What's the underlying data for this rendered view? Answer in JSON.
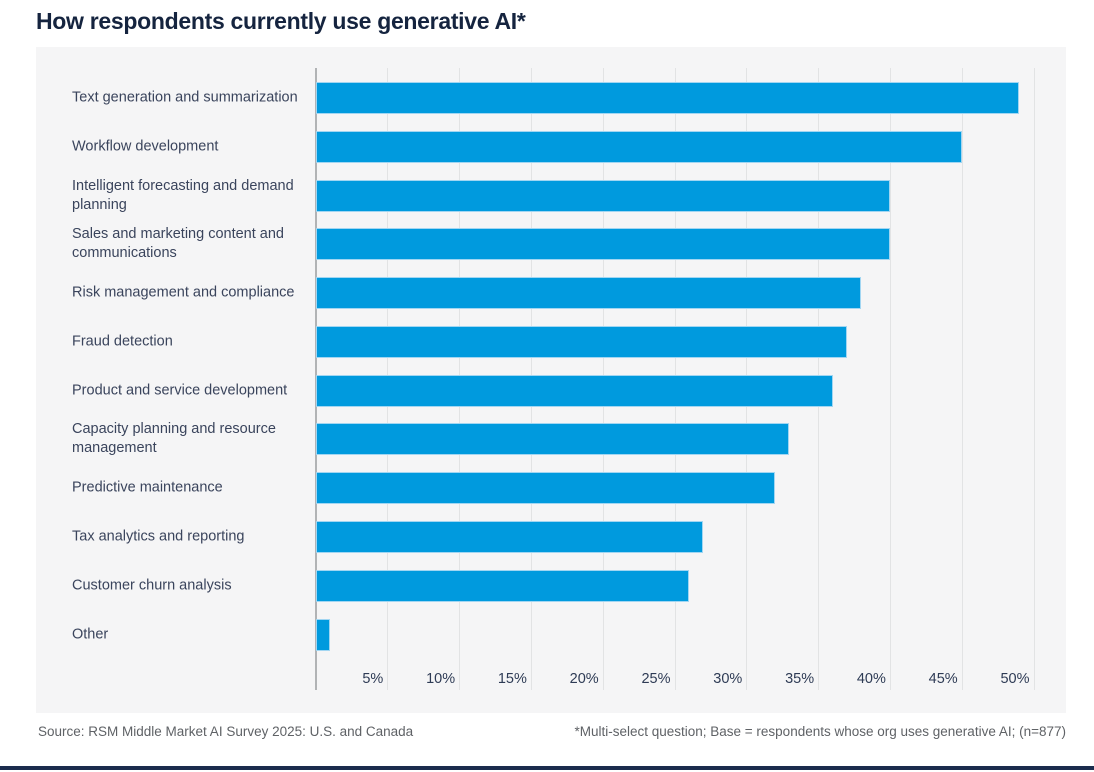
{
  "title": "How respondents currently use generative AI*",
  "footer": {
    "source": "Source: RSM Middle Market AI Survey 2025: U.S. and Canada",
    "note": "*Multi-select question; Base = respondents whose org uses generative AI; (n=877)"
  },
  "colors": {
    "bar": "#009ade",
    "bar_border": "#a2d6f2",
    "title": "#15243f",
    "category_label": "#3a445c",
    "tick_label": "#2e3b55",
    "panel_background": "#f5f5f6",
    "gridline": "#e2e3e4",
    "axis_line": "#b1b3b5",
    "footer_text": "#5f6266",
    "bottom_rule": "#1b2c4d"
  },
  "chart_data": {
    "type": "bar",
    "orientation": "horizontal",
    "title": "How respondents currently use generative AI*",
    "categories": [
      "Text generation and summarization",
      "Workflow development",
      "Intelligent forecasting and demand planning",
      "Sales and marketing content and communications",
      "Risk management and compliance",
      "Fraud detection",
      "Product and service development",
      "Capacity planning and resource management",
      "Predictive maintenance",
      "Tax analytics and reporting",
      "Customer churn analysis",
      "Other"
    ],
    "values": [
      49,
      45,
      40,
      40,
      38,
      37,
      36,
      33,
      32,
      27,
      26,
      1
    ],
    "unit": "%",
    "x_tick_labels": [
      "5%",
      "10%",
      "15%",
      "20%",
      "25%",
      "30%",
      "35%",
      "40%",
      "45%",
      "50%"
    ],
    "x_tick_values": [
      5,
      10,
      15,
      20,
      25,
      30,
      35,
      40,
      45,
      50
    ],
    "xlim": [
      0,
      50
    ],
    "grid": true,
    "legend": false,
    "data_labels": false
  }
}
